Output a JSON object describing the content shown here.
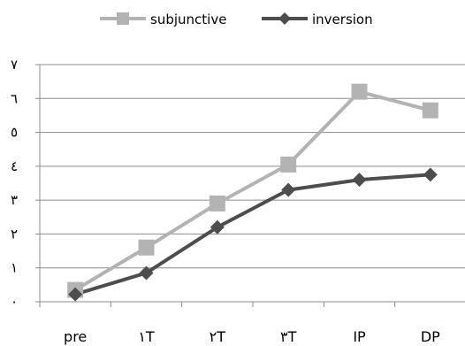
{
  "chart_data": {
    "type": "line",
    "categories": [
      "pre",
      "١T",
      "٢T",
      "٣T",
      "IP",
      "DP"
    ],
    "y_tick_labels": [
      "٠",
      "١",
      "٢",
      "٣",
      "٤",
      "٥",
      "٦",
      "٧"
    ],
    "ylim": [
      0,
      7
    ],
    "grid": true,
    "legend_position": "top",
    "series": [
      {
        "name": "subjunctive",
        "values": [
          0.35,
          1.6,
          2.9,
          4.05,
          6.2,
          5.65
        ],
        "color": "#b3b3b3",
        "marker": "square"
      },
      {
        "name": "inversion",
        "values": [
          0.22,
          0.85,
          2.2,
          3.3,
          3.6,
          3.75
        ],
        "color": "#4d4d4d",
        "marker": "diamond"
      }
    ]
  }
}
